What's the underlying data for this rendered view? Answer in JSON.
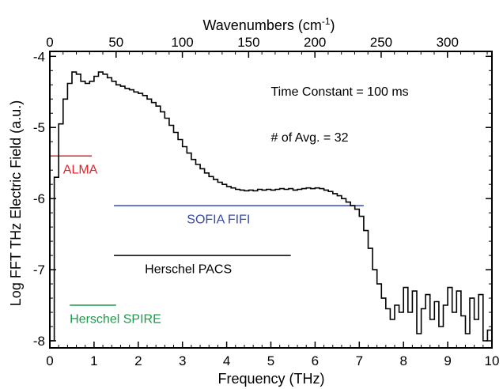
{
  "chart_data": {
    "type": "line",
    "title": "",
    "xlabel": "Frequency (THz)",
    "ylabel": "Log FFT THz Electric Field (a.u.)",
    "x2label_main": "Wavenumbers (cm",
    "x2label_sup": "-1",
    "x2label_end": ")",
    "xlim": [
      0,
      10
    ],
    "ylim": [
      -8.1,
      -3.93
    ],
    "x2lim": [
      0,
      333.56
    ],
    "grid": false,
    "xticks": [
      0,
      1,
      2,
      3,
      4,
      5,
      6,
      7,
      8,
      9,
      10
    ],
    "xtick_labels": [
      "0",
      "1",
      "2",
      "3",
      "4",
      "5",
      "6",
      "7",
      "8",
      "9",
      "10"
    ],
    "yticks": [
      -8,
      -7,
      -6,
      -5,
      -4
    ],
    "ytick_labels": [
      "-8",
      "-7",
      "-6",
      "-5",
      "-4"
    ],
    "x2ticks": [
      0,
      50,
      100,
      150,
      200,
      250,
      300
    ],
    "x2tick_labels": [
      "0",
      "50",
      "100",
      "150",
      "200",
      "250",
      "300"
    ],
    "annotations": [
      {
        "text": "Time Constant = 100 ms",
        "x": 5.0,
        "y": -4.55
      },
      {
        "text": "# of Avg. = 32",
        "x": 5.0,
        "y": -5.2
      }
    ],
    "bands": [
      {
        "name": "ALMA",
        "x_start": 0.05,
        "x_end": 0.95,
        "y": -5.4,
        "label_x": 0.3,
        "label_y": -5.65,
        "color": "#e0252a"
      },
      {
        "name": "SOFIA FIFI",
        "x_start": 1.45,
        "x_end": 7.1,
        "y": -6.1,
        "label_x": 3.1,
        "label_y": -6.35,
        "color": "#3a4aa8"
      },
      {
        "name": "Herschel PACS",
        "x_start": 1.45,
        "x_end": 5.45,
        "y": -6.8,
        "label_x": 2.15,
        "label_y": -7.05,
        "color": "#000000"
      },
      {
        "name": "Herschel SPIRE",
        "x_start": 0.45,
        "x_end": 1.5,
        "y": -7.5,
        "label_x": 0.45,
        "label_y": -7.75,
        "color": "#1a9a4a"
      }
    ],
    "series": [
      {
        "color": "#000000",
        "step": true,
        "x": [
          0.0,
          0.1,
          0.2,
          0.3,
          0.4,
          0.5,
          0.6,
          0.7,
          0.8,
          0.9,
          1.0,
          1.1,
          1.2,
          1.3,
          1.4,
          1.5,
          1.6,
          1.7,
          1.8,
          1.9,
          2.0,
          2.1,
          2.2,
          2.3,
          2.4,
          2.5,
          2.6,
          2.7,
          2.8,
          2.9,
          3.0,
          3.1,
          3.2,
          3.3,
          3.4,
          3.5,
          3.6,
          3.7,
          3.8,
          3.9,
          4.0,
          4.1,
          4.2,
          4.3,
          4.4,
          4.5,
          4.6,
          4.7,
          4.8,
          4.9,
          5.0,
          5.1,
          5.2,
          5.3,
          5.4,
          5.5,
          5.6,
          5.7,
          5.8,
          5.9,
          6.0,
          6.1,
          6.2,
          6.3,
          6.4,
          6.5,
          6.6,
          6.7,
          6.8,
          6.9,
          7.0,
          7.1,
          7.2,
          7.3,
          7.4,
          7.5,
          7.6,
          7.7,
          7.8,
          7.9,
          8.0,
          8.1,
          8.2,
          8.3,
          8.4,
          8.5,
          8.6,
          8.7,
          8.8,
          8.9,
          9.0,
          9.1,
          9.2,
          9.3,
          9.4,
          9.5,
          9.6,
          9.7,
          9.8,
          9.9
        ],
        "y": [
          -8.0,
          -5.7,
          -4.95,
          -4.6,
          -4.38,
          -4.22,
          -4.25,
          -4.35,
          -4.38,
          -4.35,
          -4.28,
          -4.22,
          -4.25,
          -4.3,
          -4.35,
          -4.4,
          -4.42,
          -4.45,
          -4.47,
          -4.5,
          -4.52,
          -4.55,
          -4.6,
          -4.65,
          -4.7,
          -4.78,
          -4.87,
          -4.97,
          -5.07,
          -5.17,
          -5.27,
          -5.36,
          -5.45,
          -5.52,
          -5.58,
          -5.64,
          -5.69,
          -5.73,
          -5.77,
          -5.8,
          -5.83,
          -5.85,
          -5.87,
          -5.88,
          -5.89,
          -5.88,
          -5.89,
          -5.87,
          -5.88,
          -5.87,
          -5.88,
          -5.87,
          -5.86,
          -5.87,
          -5.86,
          -5.88,
          -5.87,
          -5.86,
          -5.85,
          -5.86,
          -5.85,
          -5.86,
          -5.88,
          -5.9,
          -5.93,
          -5.96,
          -6.0,
          -6.05,
          -6.1,
          -6.15,
          -6.25,
          -6.45,
          -6.7,
          -7.0,
          -7.2,
          -7.4,
          -7.55,
          -7.7,
          -7.5,
          -7.6,
          -7.25,
          -7.6,
          -7.3,
          -7.9,
          -7.55,
          -7.35,
          -7.7,
          -7.45,
          -7.8,
          -7.5,
          -7.25,
          -7.6,
          -7.3,
          -7.65,
          -7.9,
          -7.4,
          -7.7,
          -7.35,
          -8.0,
          -7.85
        ]
      }
    ]
  }
}
